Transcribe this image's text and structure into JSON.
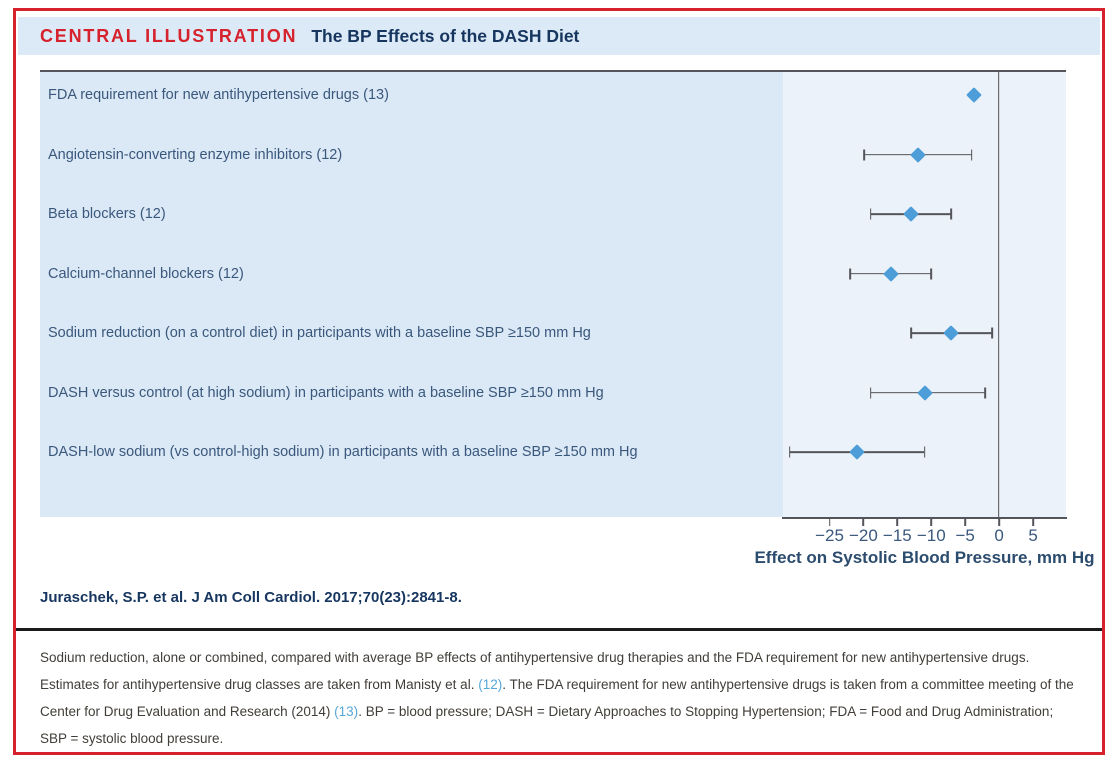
{
  "header": {
    "kicker": "CENTRAL ILLUSTRATION",
    "title": "The BP Effects of the DASH Diet"
  },
  "chart_data": {
    "type": "scatter",
    "subtype": "forest-plot",
    "xlabel": "Effect on Systolic Blood Pressure, mm Hg",
    "xlim": [
      -32,
      10
    ],
    "x_ticks": [
      -25,
      -20,
      -15,
      -10,
      -5,
      0,
      5
    ],
    "x_tick_labels": [
      "−25",
      "−20",
      "−15",
      "−10",
      "−5",
      "0",
      "5"
    ],
    "zero_reference_line": 0,
    "marker": "diamond",
    "rows": [
      {
        "label": "FDA requirement for new antihypertensive drugs (13)",
        "value": -3.7,
        "ci": null
      },
      {
        "label": "Angiotensin-converting enzyme inhibitors (12)",
        "value": -12,
        "ci": [
          -20,
          -4
        ]
      },
      {
        "label": "Beta blockers (12)",
        "value": -13,
        "ci": [
          -19,
          -7
        ]
      },
      {
        "label": "Calcium-channel blockers (12)",
        "value": -16,
        "ci": [
          -22,
          -10
        ]
      },
      {
        "label": "Sodium reduction (on a control diet) in participants with a baseline SBP ≥150 mm Hg",
        "value": -7,
        "ci": [
          -13,
          -1
        ]
      },
      {
        "label": "DASH versus control (at high sodium) in participants with a baseline SBP ≥150 mm Hg",
        "value": -11,
        "ci": [
          -19,
          -2
        ]
      },
      {
        "label": "DASH-low sodium (vs control-high sodium) in participants with a baseline SBP ≥150 mm Hg",
        "value": -21,
        "ci": [
          -31,
          -11
        ]
      }
    ]
  },
  "citation": "Juraschek, S.P. et al. J Am Coll Cardiol. 2017;70(23):2841-8.",
  "caption": {
    "part1": "Sodium reduction, alone or combined, compared with average BP effects of antihypertensive drug therapies and the FDA requirement for new antihypertensive drugs. Estimates for antihypertensive drug classes are taken from Manisty et al. ",
    "ref1": "(12)",
    "part2": ". The FDA requirement for new antihypertensive drugs is taken from a committee meeting of the Center for Drug Evaluation and Research (2014) ",
    "ref2": "(13)",
    "part3": ". BP = blood pressure; DASH = Dietary Approaches to Stopping Hypertension; FDA = Food and Drug Administration; SBP = systolic blood pressure."
  },
  "colors": {
    "accent_red": "#d5222d",
    "navy": "#16365f",
    "steel_text": "#3a587c",
    "title_band_bg": "#dce9f7",
    "label_band_bg": "#dbe8f6",
    "plot_band_bg": "#ecf2f9",
    "line_gray": "#54555a",
    "marker_blue": "#4d9dd8",
    "link_blue": "#57a7d8",
    "caption_text": "#413d38",
    "separator_black": "#1a1a1a"
  }
}
